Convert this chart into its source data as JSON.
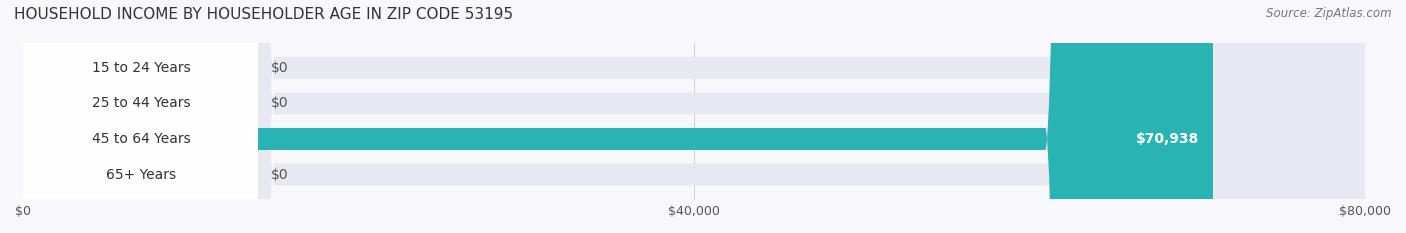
{
  "title": "HOUSEHOLD INCOME BY HOUSEHOLDER AGE IN ZIP CODE 53195",
  "source": "Source: ZipAtlas.com",
  "categories": [
    "15 to 24 Years",
    "25 to 44 Years",
    "45 to 64 Years",
    "65+ Years"
  ],
  "values": [
    0,
    0,
    70938,
    0
  ],
  "bar_colors": [
    "#a8c4d8",
    "#c4a8c8",
    "#2ab3b3",
    "#b8b8e0"
  ],
  "label_colors": [
    "#a8c4d8",
    "#c4a8c8",
    "#2ab3b3",
    "#b8b8e0"
  ],
  "bar_bg_color": "#f0f0f5",
  "value_labels": [
    "$0",
    "$0",
    "$70,938",
    "$0"
  ],
  "xlim": [
    0,
    80000
  ],
  "xticks": [
    0,
    40000,
    80000
  ],
  "xticklabels": [
    "$0",
    "$40,000",
    "$80,000"
  ],
  "title_fontsize": 11,
  "source_fontsize": 8.5,
  "label_fontsize": 10,
  "value_fontsize": 10,
  "background_color": "#f8f8fc"
}
